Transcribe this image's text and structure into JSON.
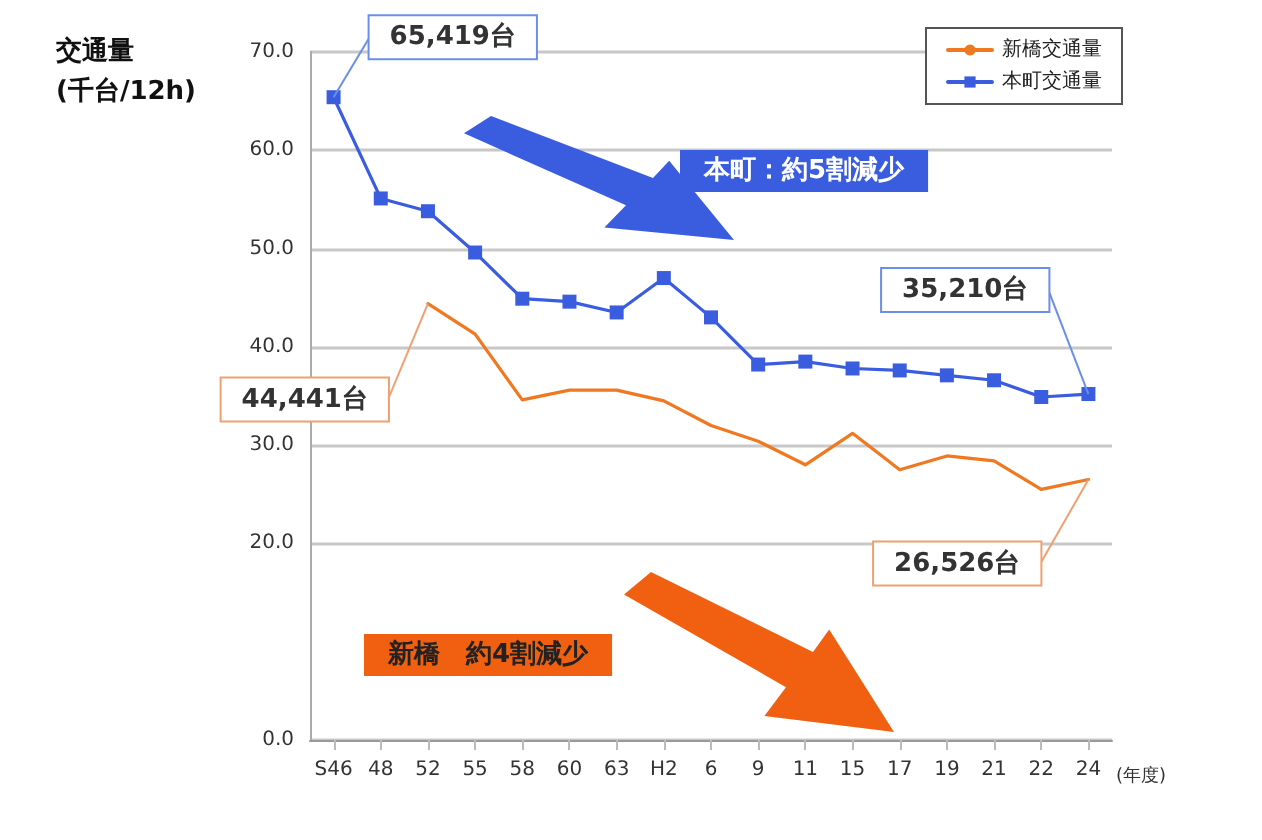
{
  "chart_data": {
    "type": "line",
    "ylabel": "交通量\n(千台/12h)",
    "xlabel": "(年度)",
    "categories": [
      "S46",
      "48",
      "52",
      "55",
      "58",
      "60",
      "63",
      "H2",
      "6",
      "9",
      "11",
      "15",
      "17",
      "19",
      "21",
      "22",
      "24"
    ],
    "series": [
      {
        "name": "新橋交通量",
        "color": "#f07820",
        "marker": "none",
        "values": [
          null,
          null,
          44.4,
          41.3,
          34.6,
          35.6,
          35.6,
          34.5,
          32.0,
          30.4,
          28.0,
          31.2,
          27.5,
          28.9,
          28.4,
          25.5,
          26.5
        ]
      },
      {
        "name": "本町交通量",
        "color": "#3a5de0",
        "marker": "square",
        "values": [
          65.4,
          55.1,
          53.8,
          49.6,
          44.9,
          44.6,
          43.5,
          47.0,
          43.0,
          38.2,
          38.5,
          37.8,
          37.6,
          37.1,
          36.6,
          34.9,
          35.2
        ]
      }
    ],
    "ylim": [
      0,
      70
    ],
    "yticks": [
      {
        "value": 0,
        "label": "0.0"
      },
      {
        "value": 20,
        "label": "20.0"
      },
      {
        "value": 30,
        "label": "30.0"
      },
      {
        "value": 40,
        "label": "40.0"
      },
      {
        "value": 50,
        "label": "50.0"
      },
      {
        "value": 60,
        "label": "60.0"
      },
      {
        "value": 70,
        "label": "70.0"
      }
    ],
    "grid": "y",
    "legend": "top right",
    "annotations": [
      {
        "text": "65,419台",
        "x": "S46",
        "y": 65.4
      },
      {
        "text": "35,210台",
        "x": "24",
        "y": 35.2
      },
      {
        "text": "44,441台",
        "x": "52",
        "y": 44.4
      },
      {
        "text": "26,526台",
        "x": "24",
        "y": 26.5
      },
      "本町：約5割減少",
      "新橋　約4割減少"
    ]
  }
}
